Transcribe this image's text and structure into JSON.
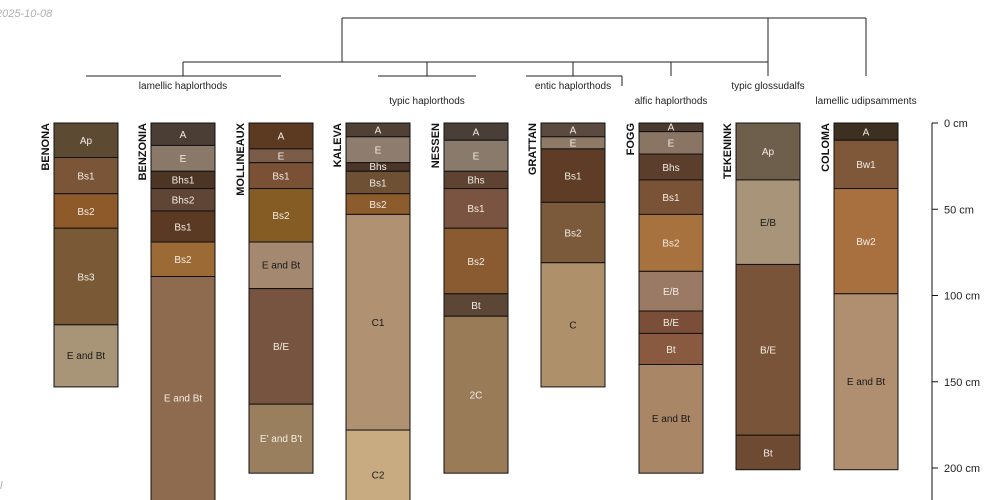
{
  "corner": {
    "date": "2025-10-08",
    "bottom": "l"
  },
  "chart_data": {
    "type": "soil-profile-sketch",
    "depth_unit": "cm",
    "depth_ticks": [
      0,
      50,
      100,
      150,
      200
    ],
    "tick_labels": [
      "0 cm",
      "50 cm",
      "100 cm",
      "150 cm",
      "200 cm"
    ],
    "groups": [
      {
        "name": "lamellic haplorthods",
        "members": [
          "BENONA",
          "BENZONIA",
          "MOLLINEAUX"
        ]
      },
      {
        "name": "typic haplorthods",
        "members": [
          "KALEVA",
          "NESSEN"
        ]
      },
      {
        "name": "entic haplorthods",
        "members": [
          "GRATTAN"
        ]
      },
      {
        "name": "alfic haplorthods",
        "members": [
          "FOGG"
        ]
      },
      {
        "name": "typic glossudalfs",
        "members": [
          "TEKENINK"
        ]
      },
      {
        "name": "lamellic udipsamments",
        "members": [
          "COLOMA"
        ]
      }
    ],
    "profiles": [
      {
        "name": "BENONA",
        "horizons": [
          {
            "name": "Ap",
            "top": 0,
            "bottom": 20,
            "color": "#5d4a33"
          },
          {
            "name": "Bs1",
            "top": 20,
            "bottom": 41,
            "color": "#7a5538"
          },
          {
            "name": "Bs2",
            "top": 41,
            "bottom": 61,
            "color": "#8f5a2a"
          },
          {
            "name": "Bs3",
            "top": 61,
            "bottom": 117,
            "color": "#7a5a36"
          },
          {
            "name": "E and Bt",
            "top": 117,
            "bottom": 153,
            "color": "#a89477"
          }
        ]
      },
      {
        "name": "BENZONIA",
        "horizons": [
          {
            "name": "A",
            "top": 0,
            "bottom": 13,
            "color": "#4a3e35"
          },
          {
            "name": "E",
            "top": 13,
            "bottom": 28,
            "color": "#8a7868"
          },
          {
            "name": "Bhs1",
            "top": 28,
            "bottom": 38,
            "color": "#4c3525"
          },
          {
            "name": "Bhs2",
            "top": 38,
            "bottom": 51,
            "color": "#5e4535"
          },
          {
            "name": "Bs1",
            "top": 51,
            "bottom": 69,
            "color": "#5b3a24"
          },
          {
            "name": "Bs2",
            "top": 69,
            "bottom": 89,
            "color": "#9c6a34"
          },
          {
            "name": "E and Bt",
            "top": 89,
            "bottom": 230,
            "color": "#8e6a4e"
          }
        ]
      },
      {
        "name": "MOLLINEAUX",
        "horizons": [
          {
            "name": "A",
            "top": 0,
            "bottom": 15,
            "color": "#5c3a22"
          },
          {
            "name": "E",
            "top": 15,
            "bottom": 23,
            "color": "#7a5c48"
          },
          {
            "name": "Bs1",
            "top": 23,
            "bottom": 38,
            "color": "#7a5134"
          },
          {
            "name": "Bs2",
            "top": 38,
            "bottom": 69,
            "color": "#845c24"
          },
          {
            "name": "E and Bt",
            "top": 69,
            "bottom": 96,
            "color": "#a48870"
          },
          {
            "name": "B/E",
            "top": 96,
            "bottom": 163,
            "color": "#765440"
          },
          {
            "name": "E' and B't",
            "top": 163,
            "bottom": 203,
            "color": "#9a7f5e"
          }
        ]
      },
      {
        "name": "KALEVA",
        "horizons": [
          {
            "name": "A",
            "top": 0,
            "bottom": 8,
            "color": "#504035"
          },
          {
            "name": "E",
            "top": 8,
            "bottom": 23,
            "color": "#8e7d6f"
          },
          {
            "name": "Bhs",
            "top": 23,
            "bottom": 28,
            "color": "#4a3528"
          },
          {
            "name": "Bs1",
            "top": 28,
            "bottom": 41,
            "color": "#6e5035"
          },
          {
            "name": "Bs2",
            "top": 41,
            "bottom": 53,
            "color": "#8c5c2c"
          },
          {
            "name": "C1",
            "top": 53,
            "bottom": 178,
            "color": "#b09272"
          },
          {
            "name": "C2",
            "top": 178,
            "bottom": 230,
            "color": "#c9ab82"
          }
        ]
      },
      {
        "name": "NESSEN",
        "horizons": [
          {
            "name": "A",
            "top": 0,
            "bottom": 10,
            "color": "#4a3e38"
          },
          {
            "name": "E",
            "top": 10,
            "bottom": 28,
            "color": "#8a7a6c"
          },
          {
            "name": "Bhs",
            "top": 28,
            "bottom": 38,
            "color": "#5e4232"
          },
          {
            "name": "Bs1",
            "top": 38,
            "bottom": 61,
            "color": "#7a5440"
          },
          {
            "name": "Bs2",
            "top": 61,
            "bottom": 99,
            "color": "#8a5a30"
          },
          {
            "name": "Bt",
            "top": 99,
            "bottom": 112,
            "color": "#5c4635"
          },
          {
            "name": "2C",
            "top": 112,
            "bottom": 203,
            "color": "#9a7b58"
          }
        ]
      },
      {
        "name": "GRATTAN",
        "horizons": [
          {
            "name": "A",
            "top": 0,
            "bottom": 8,
            "color": "#5a4a40"
          },
          {
            "name": "E",
            "top": 8,
            "bottom": 15,
            "color": "#8e7a66"
          },
          {
            "name": "Bs1",
            "top": 15,
            "bottom": 46,
            "color": "#5e3c26"
          },
          {
            "name": "Bs2",
            "top": 46,
            "bottom": 81,
            "color": "#7a5a3a"
          },
          {
            "name": "C",
            "top": 81,
            "bottom": 153,
            "color": "#ae916b"
          }
        ]
      },
      {
        "name": "FOGG",
        "horizons": [
          {
            "name": "A",
            "top": 0,
            "bottom": 5,
            "color": "#4a3a30"
          },
          {
            "name": "E",
            "top": 5,
            "bottom": 18,
            "color": "#8a7565"
          },
          {
            "name": "Bhs",
            "top": 18,
            "bottom": 33,
            "color": "#5c3e2c"
          },
          {
            "name": "Bs1",
            "top": 33,
            "bottom": 53,
            "color": "#7a5336"
          },
          {
            "name": "Bs2",
            "top": 53,
            "bottom": 86,
            "color": "#a8723e"
          },
          {
            "name": "E/B",
            "top": 86,
            "bottom": 109,
            "color": "#9a7a64"
          },
          {
            "name": "B/E",
            "top": 109,
            "bottom": 122,
            "color": "#7a4e38"
          },
          {
            "name": "Bt",
            "top": 122,
            "bottom": 140,
            "color": "#8a5a40"
          },
          {
            "name": "E and Bt",
            "top": 140,
            "bottom": 203,
            "color": "#a88666"
          }
        ]
      },
      {
        "name": "TEKENINK",
        "horizons": [
          {
            "name": "Ap",
            "top": 0,
            "bottom": 33,
            "color": "#6e5e4c"
          },
          {
            "name": "E/B",
            "top": 33,
            "bottom": 82,
            "color": "#a89478"
          },
          {
            "name": "B/E",
            "top": 82,
            "bottom": 181,
            "color": "#7a5438"
          },
          {
            "name": "Bt",
            "top": 181,
            "bottom": 201,
            "color": "#6e4a32"
          }
        ]
      },
      {
        "name": "COLOMA",
        "horizons": [
          {
            "name": "A",
            "top": 0,
            "bottom": 10,
            "color": "#3e3020"
          },
          {
            "name": "Bw1",
            "top": 10,
            "bottom": 38,
            "color": "#7e5838"
          },
          {
            "name": "Bw2",
            "top": 38,
            "bottom": 99,
            "color": "#a8703e"
          },
          {
            "name": "E and Bt",
            "top": 99,
            "bottom": 201,
            "color": "#b08e70"
          }
        ]
      }
    ]
  }
}
